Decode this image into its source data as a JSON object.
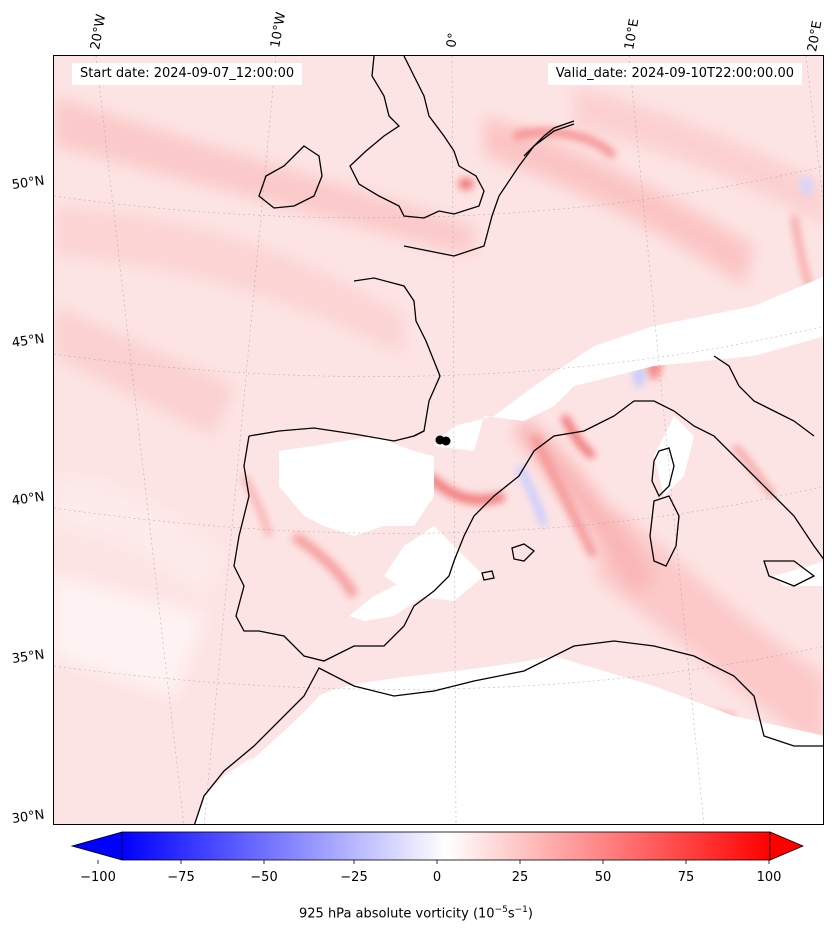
{
  "header": {
    "start_label": "Start date: 2024-09-07_12:00:00",
    "valid_label": "Valid_date: 2024-09-10T22:00:00.00"
  },
  "longitude_labels": [
    "20°W",
    "10°W",
    "0°",
    "10°E",
    "20°E"
  ],
  "latitude_labels": [
    "50°N",
    "45°N",
    "40°N",
    "35°N",
    "30°N"
  ],
  "colorbar": {
    "title": "925 hPa absolute vorticity (10",
    "title_exp1": "−5",
    "title_mid": "s",
    "title_exp2": "−1",
    "title_end": ")",
    "ticks": [
      "−100",
      "−75",
      "−50",
      "−25",
      "0",
      "25",
      "50",
      "75",
      "100"
    ],
    "range": [
      -100,
      100
    ],
    "colormap": "bwr",
    "neg_color": "#0000ff",
    "zero_color": "#ffffff",
    "pos_color": "#ff0000"
  },
  "marker": {
    "label": "location-marker",
    "color": "#000000"
  }
}
